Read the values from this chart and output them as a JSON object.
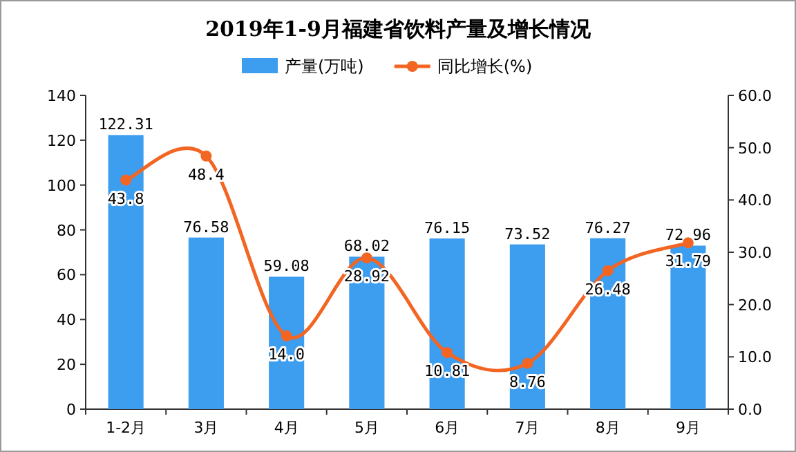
{
  "chart_data": {
    "type": "bar",
    "title": "2019年1-9月福建省饮料产量及增长情况",
    "categories": [
      "1-2月",
      "3月",
      "4月",
      "5月",
      "6月",
      "7月",
      "8月",
      "9月"
    ],
    "series": [
      {
        "name": "产量(万吨)",
        "color": "#3d9ef0",
        "values": [
          122.31,
          76.58,
          59.08,
          68.02,
          76.15,
          73.52,
          76.27,
          72.96
        ]
      },
      {
        "name": "同比增长(%)",
        "type": "line",
        "axis": "y2",
        "color": "#f26522",
        "values": [
          43.8,
          48.4,
          14.0,
          28.92,
          10.81,
          8.76,
          26.48,
          31.79
        ],
        "value_labels": [
          "43.8",
          "48.4",
          "14.0",
          "28.92",
          "10.81",
          "8.76",
          "26.48",
          "31.79"
        ]
      }
    ],
    "ylim": [
      0,
      140
    ],
    "yticks": [
      0,
      20,
      40,
      60,
      80,
      100,
      120,
      140
    ],
    "y2lim": [
      0,
      60
    ],
    "y2ticks": [
      {
        "value": 0,
        "label": "0.0"
      },
      {
        "value": 10,
        "label": "10.0"
      },
      {
        "value": 20,
        "label": "20.0"
      },
      {
        "value": 30,
        "label": "30.0"
      },
      {
        "value": 40,
        "label": "40.0"
      },
      {
        "value": 50,
        "label": "50.0"
      },
      {
        "value": 60,
        "label": "60.0"
      }
    ],
    "marker": "circle",
    "legend": "top",
    "data_labels": true,
    "grid": false
  }
}
